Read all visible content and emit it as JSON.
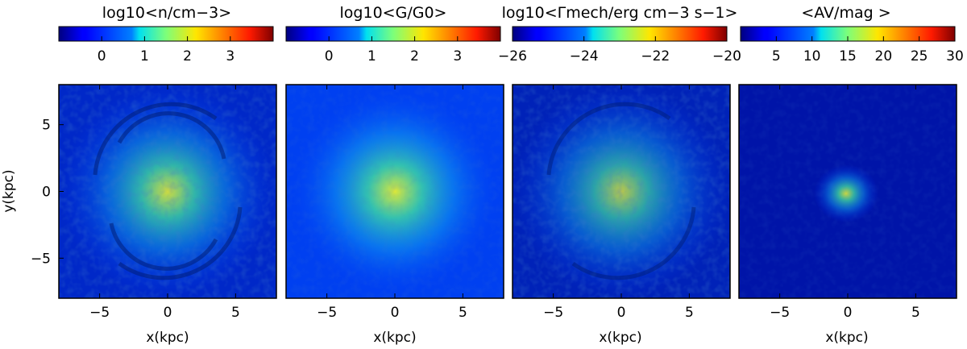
{
  "chart_data": [
    {
      "type": "heatmap",
      "title": "log10<n/cm−3>",
      "xlabel": "x(kpc)",
      "ylabel": "y(kpc)",
      "xlim": [
        -8,
        8
      ],
      "ylim": [
        -8,
        8
      ],
      "xticks": [
        "−5",
        "0",
        "5"
      ],
      "yticks": [
        "5",
        "0",
        "−5"
      ],
      "colorbar": {
        "min": -1,
        "max": 4,
        "ticks": [
          "0",
          "1",
          "2",
          "3"
        ],
        "colormap": "jet"
      },
      "features": {
        "spiral": true,
        "core_level": 0.62,
        "disk_level": 0.35
      }
    },
    {
      "type": "heatmap",
      "title": "log10<G/G0>",
      "xlabel": "x(kpc)",
      "xlim": [
        -8,
        8
      ],
      "ylim": [
        -8,
        8
      ],
      "xticks": [
        "−5",
        "0",
        "5"
      ],
      "colorbar": {
        "min": -1,
        "max": 4,
        "ticks": [
          "0",
          "1",
          "2",
          "3"
        ],
        "colormap": "jet"
      },
      "features": {
        "spiral": false,
        "core_level": 0.58,
        "disk_level": 0.32
      }
    },
    {
      "type": "heatmap",
      "title": "log10<Γmech/erg cm−3 s−1>",
      "xlabel": "x(kpc)",
      "xlim": [
        -8,
        8
      ],
      "ylim": [
        -8,
        8
      ],
      "xticks": [
        "−5",
        "0",
        "5"
      ],
      "colorbar": {
        "min": -26,
        "max": -20,
        "ticks": [
          "−26",
          "−24",
          "−22",
          "−20"
        ],
        "colormap": "jet"
      },
      "features": {
        "spiral": true,
        "core_level": 0.52,
        "disk_level": 0.3
      }
    },
    {
      "type": "heatmap",
      "title": "<AV/mag >",
      "xlabel": "x(kpc)",
      "xlim": [
        -8,
        8
      ],
      "ylim": [
        -8,
        8
      ],
      "xticks": [
        "−5",
        "0",
        "5"
      ],
      "colorbar": {
        "min": 0,
        "max": 30,
        "ticks": [
          "5",
          "10",
          "15",
          "20",
          "25",
          "30"
        ],
        "colormap": "jet"
      },
      "features": {
        "spiral": false,
        "core_level": 0.5,
        "disk_level": 0.13
      }
    }
  ]
}
